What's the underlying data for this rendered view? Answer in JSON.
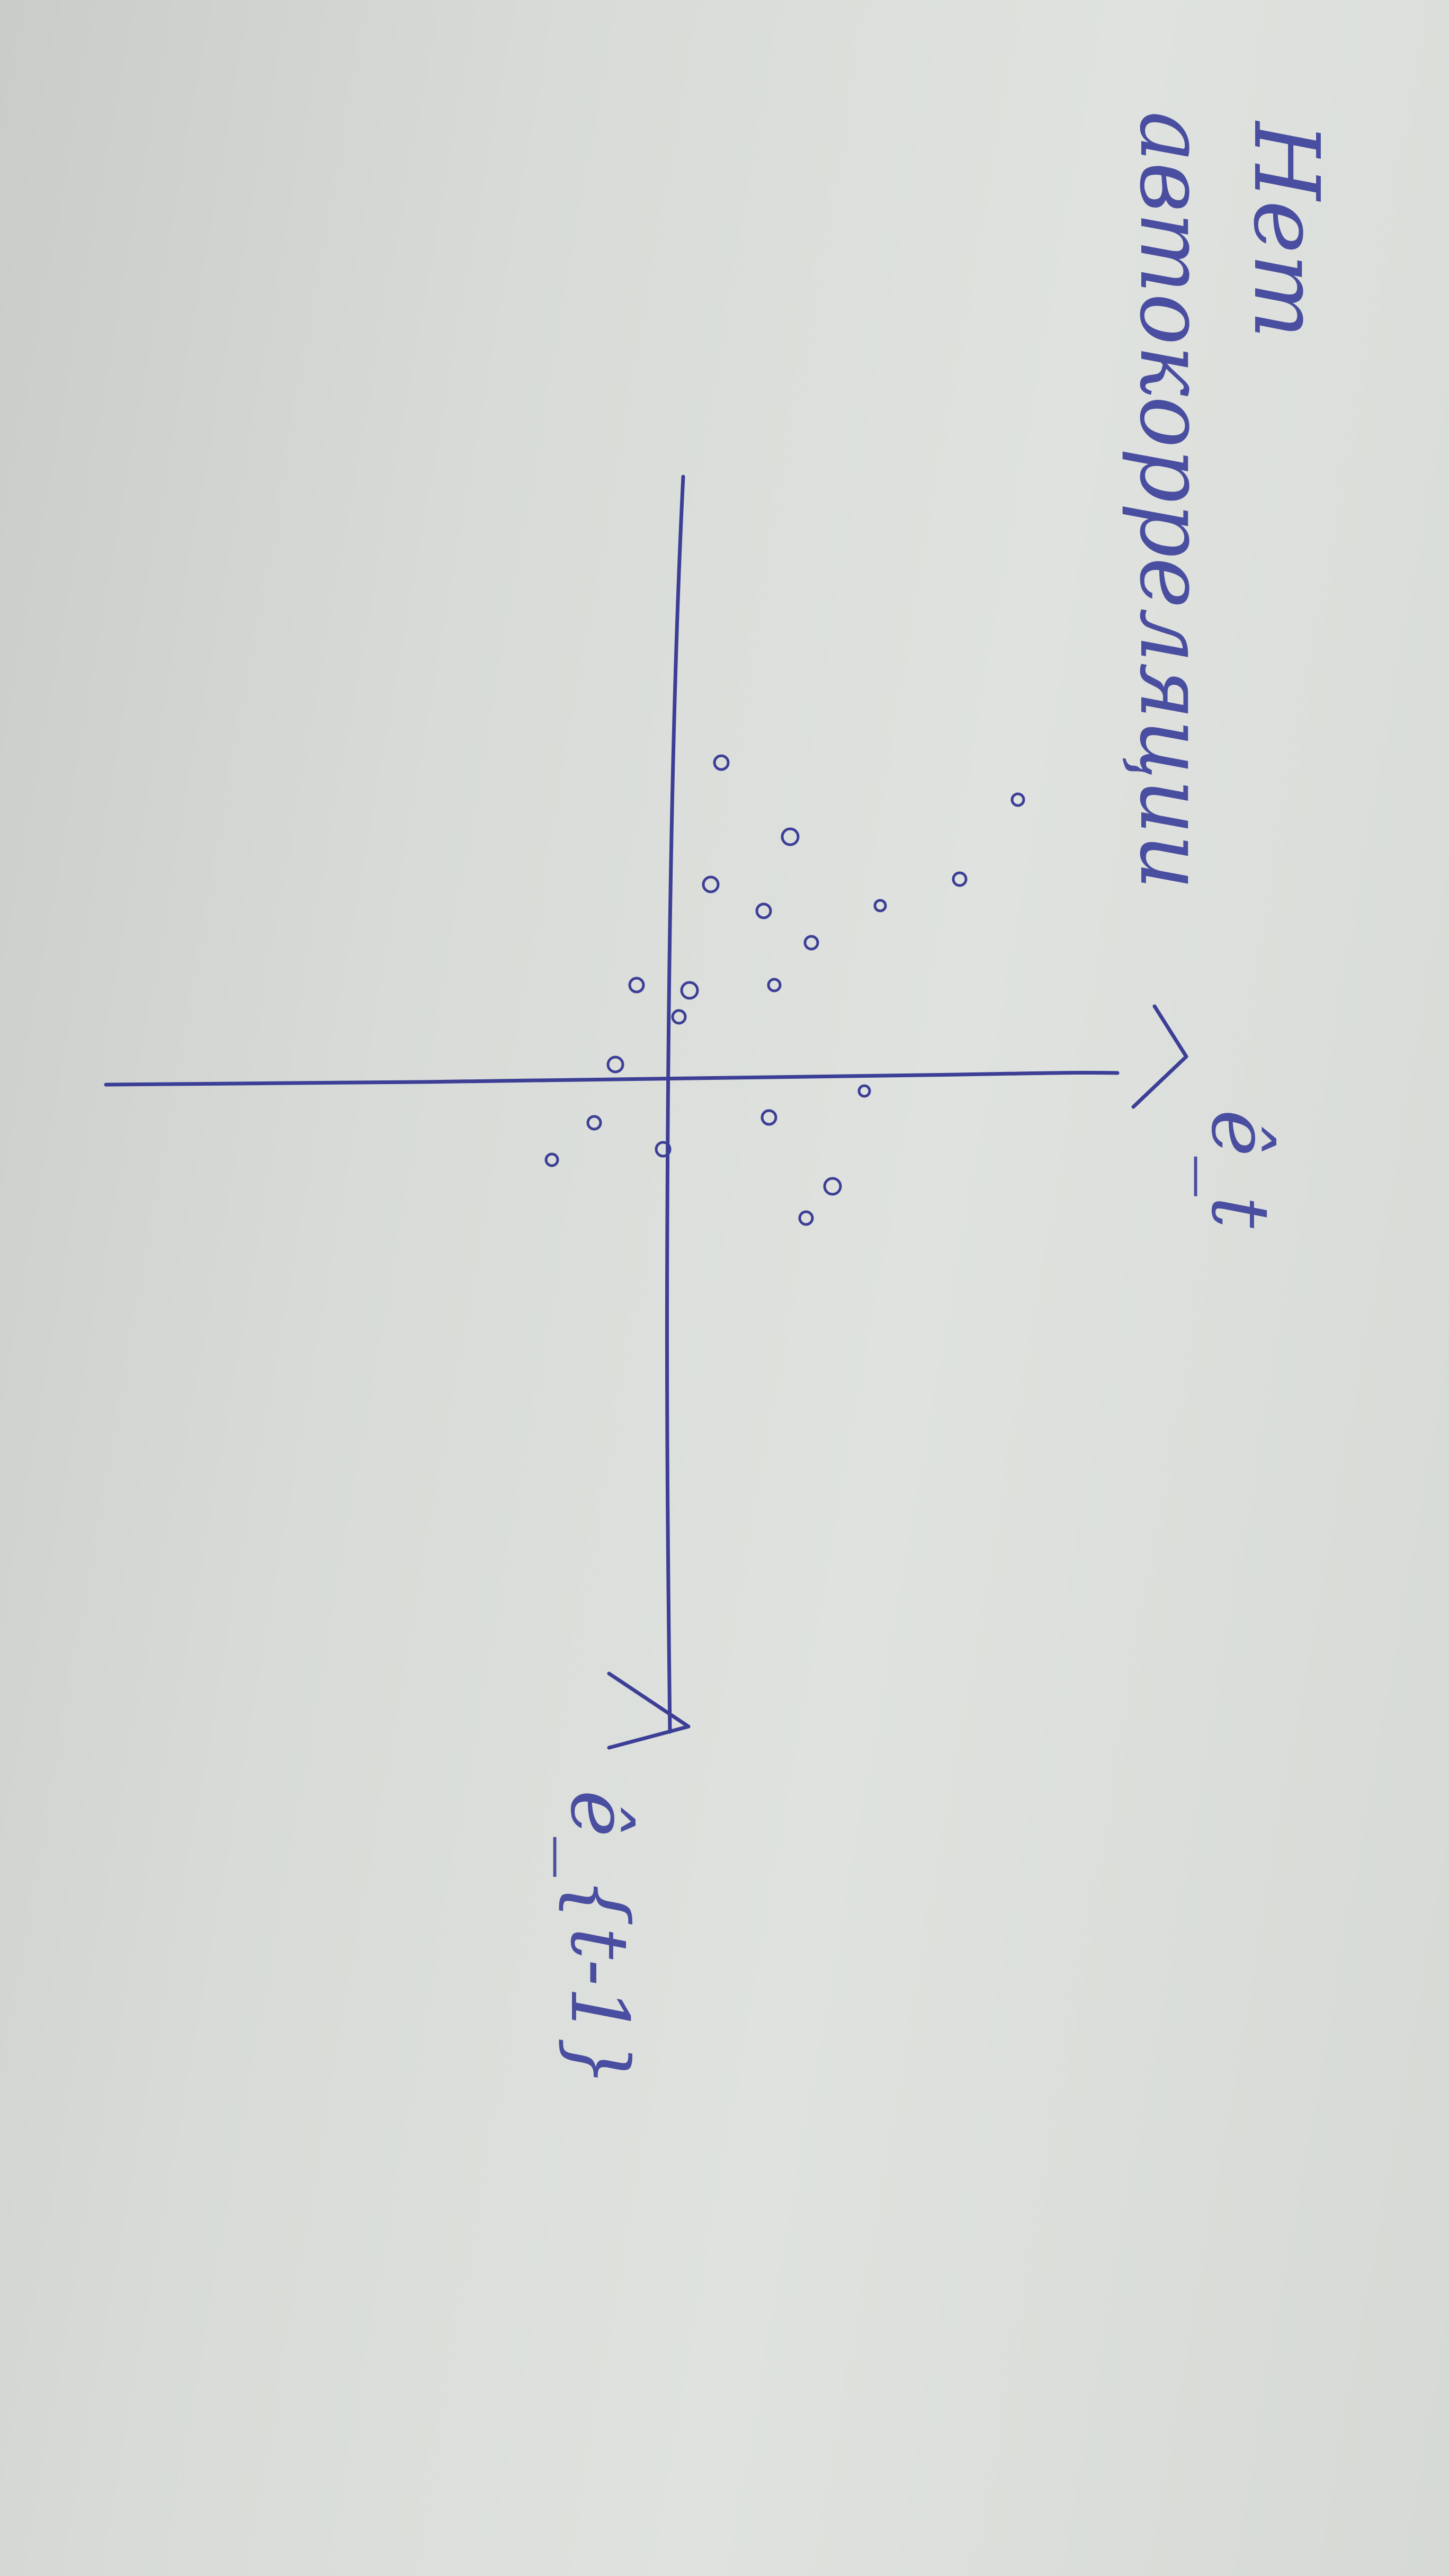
{
  "note": {
    "line1": "Нет",
    "line2": "автокорреляции"
  },
  "chart_data": {
    "type": "scatter",
    "title": "",
    "xlabel": "ê_{t-1}",
    "ylabel": "ê_t",
    "xlim": [
      -6,
      11
    ],
    "ylim": [
      -4,
      8
    ],
    "grid": false,
    "ink_color": "#3c3f95",
    "points": [
      {
        "x": -6.0,
        "y": 1.0
      },
      {
        "x": -5.3,
        "y": 6.6
      },
      {
        "x": -4.6,
        "y": 2.3
      },
      {
        "x": -3.8,
        "y": 5.5
      },
      {
        "x": -3.7,
        "y": 0.8
      },
      {
        "x": -3.3,
        "y": 4.0
      },
      {
        "x": -3.2,
        "y": 1.8
      },
      {
        "x": -2.6,
        "y": 2.7
      },
      {
        "x": -1.8,
        "y": -0.6
      },
      {
        "x": -1.8,
        "y": 2.0
      },
      {
        "x": -1.7,
        "y": 0.4
      },
      {
        "x": -1.2,
        "y": 0.2
      },
      {
        "x": -0.3,
        "y": -1.0
      },
      {
        "x": 0.2,
        "y": 3.7
      },
      {
        "x": 0.7,
        "y": 1.9
      },
      {
        "x": 0.8,
        "y": -1.4
      },
      {
        "x": 1.3,
        "y": -0.1
      },
      {
        "x": 1.5,
        "y": -2.2
      },
      {
        "x": 2.0,
        "y": 3.1
      },
      {
        "x": 2.6,
        "y": 2.6
      }
    ]
  }
}
